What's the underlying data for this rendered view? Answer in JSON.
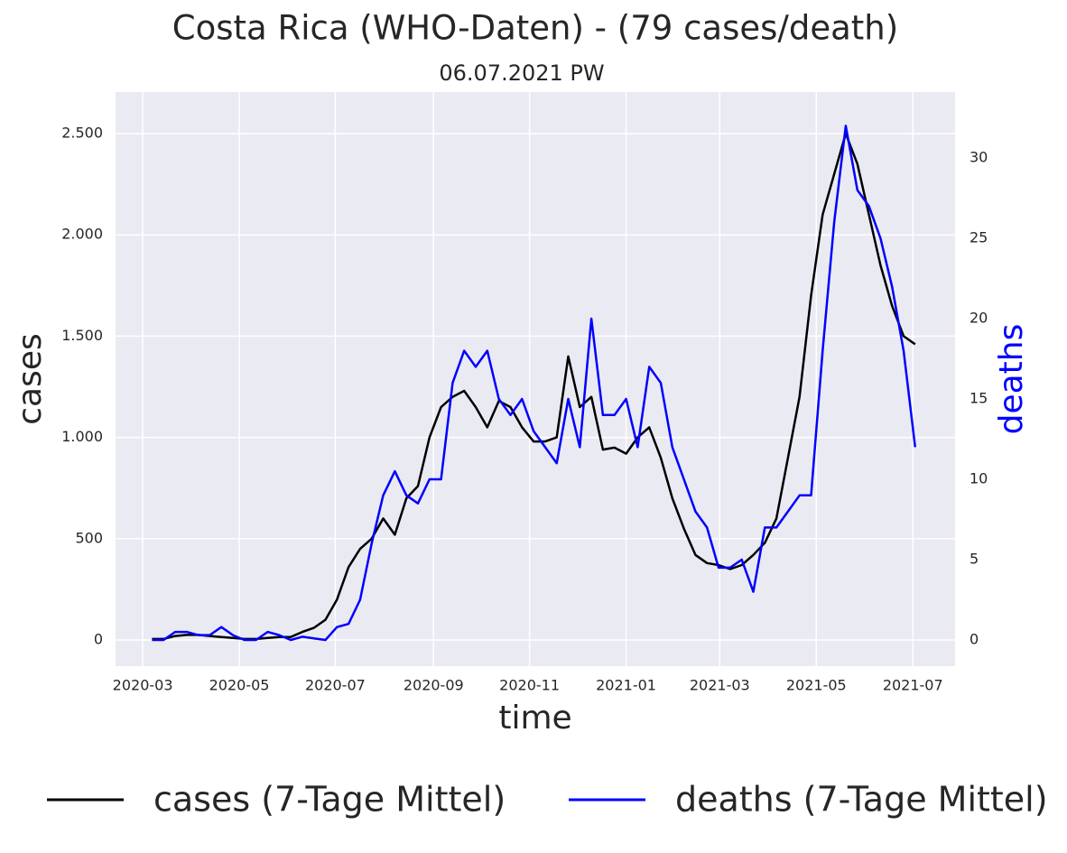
{
  "chart_data": {
    "type": "line",
    "title": "Costa Rica (WHO-Daten) - (79 cases/death)",
    "subtitle": "06.07.2021 PW",
    "xlabel": "time",
    "ylabel": "cases",
    "y2label": "deaths",
    "x": [
      2020.18,
      2020.2,
      2020.22,
      2020.24,
      2020.26,
      2020.28,
      2020.3,
      2020.32,
      2020.34,
      2020.36,
      2020.38,
      2020.4,
      2020.42,
      2020.44,
      2020.46,
      2020.48,
      2020.5,
      2020.52,
      2020.54,
      2020.56,
      2020.58,
      2020.6,
      2020.62,
      2020.64,
      2020.66,
      2020.68,
      2020.7,
      2020.72,
      2020.74,
      2020.76,
      2020.78,
      2020.8,
      2020.82,
      2020.84,
      2020.86,
      2020.88,
      2020.9,
      2020.92,
      2020.94,
      2020.96,
      2020.98,
      2021.0,
      2021.02,
      2021.04,
      2021.06,
      2021.08,
      2021.1,
      2021.12,
      2021.14,
      2021.16,
      2021.18,
      2021.2,
      2021.22,
      2021.24,
      2021.26,
      2021.28,
      2021.3,
      2021.32,
      2021.34,
      2021.36,
      2021.38,
      2021.4,
      2021.42,
      2021.44,
      2021.46,
      2021.48,
      2021.5
    ],
    "series": [
      {
        "name": "cases (7-Tage Mittel)",
        "color": "#000000",
        "axis": "y",
        "values": [
          5,
          5,
          20,
          25,
          25,
          20,
          15,
          10,
          5,
          5,
          10,
          15,
          15,
          40,
          60,
          100,
          200,
          360,
          450,
          500,
          600,
          520,
          700,
          760,
          1000,
          1150,
          1200,
          1230,
          1150,
          1050,
          1180,
          1150,
          1050,
          980,
          980,
          1000,
          1400,
          1150,
          1200,
          940,
          950,
          920,
          1000,
          1050,
          900,
          700,
          550,
          420,
          380,
          370,
          350,
          370,
          420,
          480,
          600,
          900,
          1200,
          1700,
          2100,
          2300,
          2500,
          2350,
          2100,
          1850,
          1650,
          1500,
          1460
        ]
      },
      {
        "name": "deaths (7-Tage Mittel)",
        "color": "#0000ff",
        "axis": "y2",
        "values": [
          0,
          0,
          0.5,
          0.5,
          0.3,
          0.3,
          0.8,
          0.3,
          0,
          0,
          0.5,
          0.3,
          0,
          0.2,
          0.1,
          0,
          0.8,
          1,
          2.5,
          6,
          9,
          10.5,
          9,
          8.5,
          10,
          10,
          16,
          18,
          17,
          18,
          15,
          14,
          15,
          13,
          12,
          11,
          15,
          12,
          20,
          14,
          14,
          15,
          12,
          17,
          16,
          12,
          10,
          8,
          7,
          4.5,
          4.5,
          5,
          3,
          7,
          7,
          8,
          9,
          9,
          18,
          26,
          32,
          28,
          27,
          25,
          22,
          18,
          12
        ]
      }
    ],
    "xlim": [
      2020.117,
      2021.569
    ],
    "xticks": [
      {
        "value": 2020.164,
        "label": "2020-03"
      },
      {
        "value": 2020.331,
        "label": "2020-05"
      },
      {
        "value": 2020.497,
        "label": "2020-07"
      },
      {
        "value": 2020.667,
        "label": "2020-09"
      },
      {
        "value": 2020.833,
        "label": "2020-11"
      },
      {
        "value": 2021.0,
        "label": "2021-01"
      },
      {
        "value": 2021.162,
        "label": "2021-03"
      },
      {
        "value": 2021.329,
        "label": "2021-05"
      },
      {
        "value": 2021.496,
        "label": "2021-07"
      }
    ],
    "ylim": [
      -129,
      2705
    ],
    "yticks": [
      0,
      500,
      {
        "value": 1000,
        "label": "1.000"
      },
      {
        "value": 1500,
        "label": "1.500"
      },
      {
        "value": 2000,
        "label": "2.000"
      },
      {
        "value": 2500,
        "label": "2.500"
      }
    ],
    "y2lim": [
      -1.63,
      34.1
    ],
    "y2ticks": [
      0,
      5,
      10,
      15,
      20,
      25,
      30
    ],
    "y2label_color": "#0000ff",
    "grid": true,
    "legend": "bottom"
  }
}
